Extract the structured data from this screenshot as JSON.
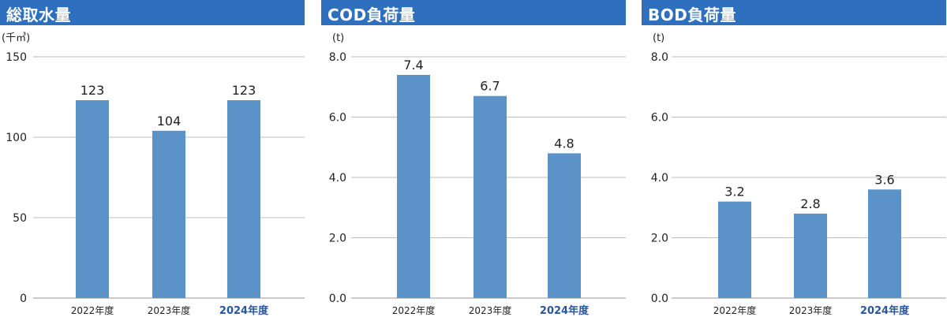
{
  "chart_data": [
    {
      "type": "bar",
      "title": "総取水量",
      "unit": "(千㎥)",
      "categories": [
        "2022年度",
        "2023年度",
        "2024年度"
      ],
      "values": [
        123,
        104,
        123
      ],
      "value_labels": [
        "123",
        "104",
        "123"
      ],
      "yticks": [
        "150",
        "100",
        "50",
        "0"
      ],
      "ylim": [
        0,
        150
      ],
      "grid": true,
      "highlight_category": "2024年度",
      "bar_color": "#5b93c9"
    },
    {
      "type": "bar",
      "title": "COD負荷量",
      "unit": "(t)",
      "categories": [
        "2022年度",
        "2023年度",
        "2024年度"
      ],
      "values": [
        7.4,
        6.7,
        4.8
      ],
      "value_labels": [
        "7.4",
        "6.7",
        "4.8"
      ],
      "yticks": [
        "8.0",
        "6.0",
        "4.0",
        "2.0",
        "0.0"
      ],
      "ylim": [
        0,
        8
      ],
      "grid": true,
      "highlight_category": "2024年度",
      "bar_color": "#5b93c9"
    },
    {
      "type": "bar",
      "title": "BOD負荷量",
      "unit": "(t)",
      "categories": [
        "2022年度",
        "2023年度",
        "2024年度"
      ],
      "values": [
        3.2,
        2.8,
        3.6
      ],
      "value_labels": [
        "3.2",
        "2.8",
        "3.6"
      ],
      "yticks": [
        "8.0",
        "6.0",
        "4.0",
        "2.0",
        "0.0"
      ],
      "ylim": [
        0,
        8
      ],
      "grid": true,
      "highlight_category": "2024年度",
      "bar_color": "#5b93c9"
    }
  ],
  "colors": {
    "header": "#2e6fbe",
    "bar": "#5b93c9",
    "highlight_text": "#2a55a0",
    "grid": "#bdbdbd"
  }
}
